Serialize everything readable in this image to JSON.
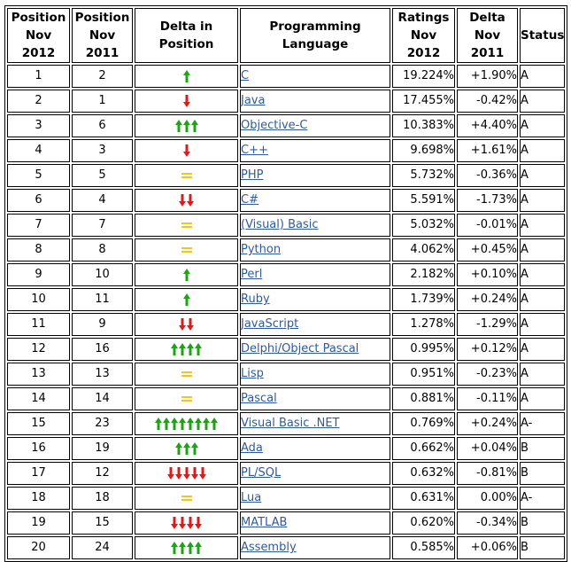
{
  "headers": {
    "pos2012": [
      "Position",
      "Nov 2012"
    ],
    "pos2011": [
      "Position",
      "Nov 2011"
    ],
    "delta_pos": "Delta in Position",
    "language": "Programming Language",
    "ratings": [
      "Ratings",
      "Nov 2012"
    ],
    "delta_rating": [
      "Delta",
      "Nov 2011"
    ],
    "status": "Status"
  },
  "colors": {
    "up": "#22a01a",
    "down": "#e01a1a",
    "same": "#f5c518",
    "link": "#2f5a9b"
  },
  "rows": [
    {
      "pos2012": "1",
      "pos2011": "2",
      "dir": "up",
      "count": 1,
      "lang": "C",
      "rating": "19.224%",
      "delta": "+1.90%",
      "status": "A"
    },
    {
      "pos2012": "2",
      "pos2011": "1",
      "dir": "down",
      "count": 1,
      "lang": "Java",
      "rating": "17.455%",
      "delta": "-0.42%",
      "status": "A"
    },
    {
      "pos2012": "3",
      "pos2011": "6",
      "dir": "up",
      "count": 3,
      "lang": "Objective-C",
      "rating": "10.383%",
      "delta": "+4.40%",
      "status": "A"
    },
    {
      "pos2012": "4",
      "pos2011": "3",
      "dir": "down",
      "count": 1,
      "lang": "C++",
      "rating": "9.698%",
      "delta": "+1.61%",
      "status": "A"
    },
    {
      "pos2012": "5",
      "pos2011": "5",
      "dir": "same",
      "count": 0,
      "lang": "PHP",
      "rating": "5.732%",
      "delta": "-0.36%",
      "status": "A"
    },
    {
      "pos2012": "6",
      "pos2011": "4",
      "dir": "down",
      "count": 2,
      "lang": "C#",
      "rating": "5.591%",
      "delta": "-1.73%",
      "status": "A"
    },
    {
      "pos2012": "7",
      "pos2011": "7",
      "dir": "same",
      "count": 0,
      "lang": "(Visual) Basic",
      "rating": "5.032%",
      "delta": "-0.01%",
      "status": "A"
    },
    {
      "pos2012": "8",
      "pos2011": "8",
      "dir": "same",
      "count": 0,
      "lang": "Python",
      "rating": "4.062%",
      "delta": "+0.45%",
      "status": "A"
    },
    {
      "pos2012": "9",
      "pos2011": "10",
      "dir": "up",
      "count": 1,
      "lang": "Perl",
      "rating": "2.182%",
      "delta": "+0.10%",
      "status": "A"
    },
    {
      "pos2012": "10",
      "pos2011": "11",
      "dir": "up",
      "count": 1,
      "lang": "Ruby",
      "rating": "1.739%",
      "delta": "+0.24%",
      "status": "A"
    },
    {
      "pos2012": "11",
      "pos2011": "9",
      "dir": "down",
      "count": 2,
      "lang": "JavaScript",
      "rating": "1.278%",
      "delta": "-1.29%",
      "status": "A"
    },
    {
      "pos2012": "12",
      "pos2011": "16",
      "dir": "up",
      "count": 4,
      "lang": "Delphi/Object Pascal",
      "rating": "0.995%",
      "delta": "+0.12%",
      "status": "A"
    },
    {
      "pos2012": "13",
      "pos2011": "13",
      "dir": "same",
      "count": 0,
      "lang": "Lisp",
      "rating": "0.951%",
      "delta": "-0.23%",
      "status": "A"
    },
    {
      "pos2012": "14",
      "pos2011": "14",
      "dir": "same",
      "count": 0,
      "lang": "Pascal",
      "rating": "0.881%",
      "delta": "-0.11%",
      "status": "A"
    },
    {
      "pos2012": "15",
      "pos2011": "23",
      "dir": "up",
      "count": 8,
      "lang": "Visual Basic .NET",
      "rating": "0.769%",
      "delta": "+0.24%",
      "status": "A-"
    },
    {
      "pos2012": "16",
      "pos2011": "19",
      "dir": "up",
      "count": 3,
      "lang": "Ada",
      "rating": "0.662%",
      "delta": "+0.04%",
      "status": "B"
    },
    {
      "pos2012": "17",
      "pos2011": "12",
      "dir": "down",
      "count": 5,
      "lang": "PL/SQL",
      "rating": "0.632%",
      "delta": "-0.81%",
      "status": "B"
    },
    {
      "pos2012": "18",
      "pos2011": "18",
      "dir": "same",
      "count": 0,
      "lang": "Lua",
      "rating": "0.631%",
      "delta": "0.00%",
      "status": "A-"
    },
    {
      "pos2012": "19",
      "pos2011": "15",
      "dir": "down",
      "count": 4,
      "lang": "MATLAB",
      "rating": "0.620%",
      "delta": "-0.34%",
      "status": "B"
    },
    {
      "pos2012": "20",
      "pos2011": "24",
      "dir": "up",
      "count": 4,
      "lang": "Assembly",
      "rating": "0.585%",
      "delta": "+0.06%",
      "status": "B"
    }
  ]
}
